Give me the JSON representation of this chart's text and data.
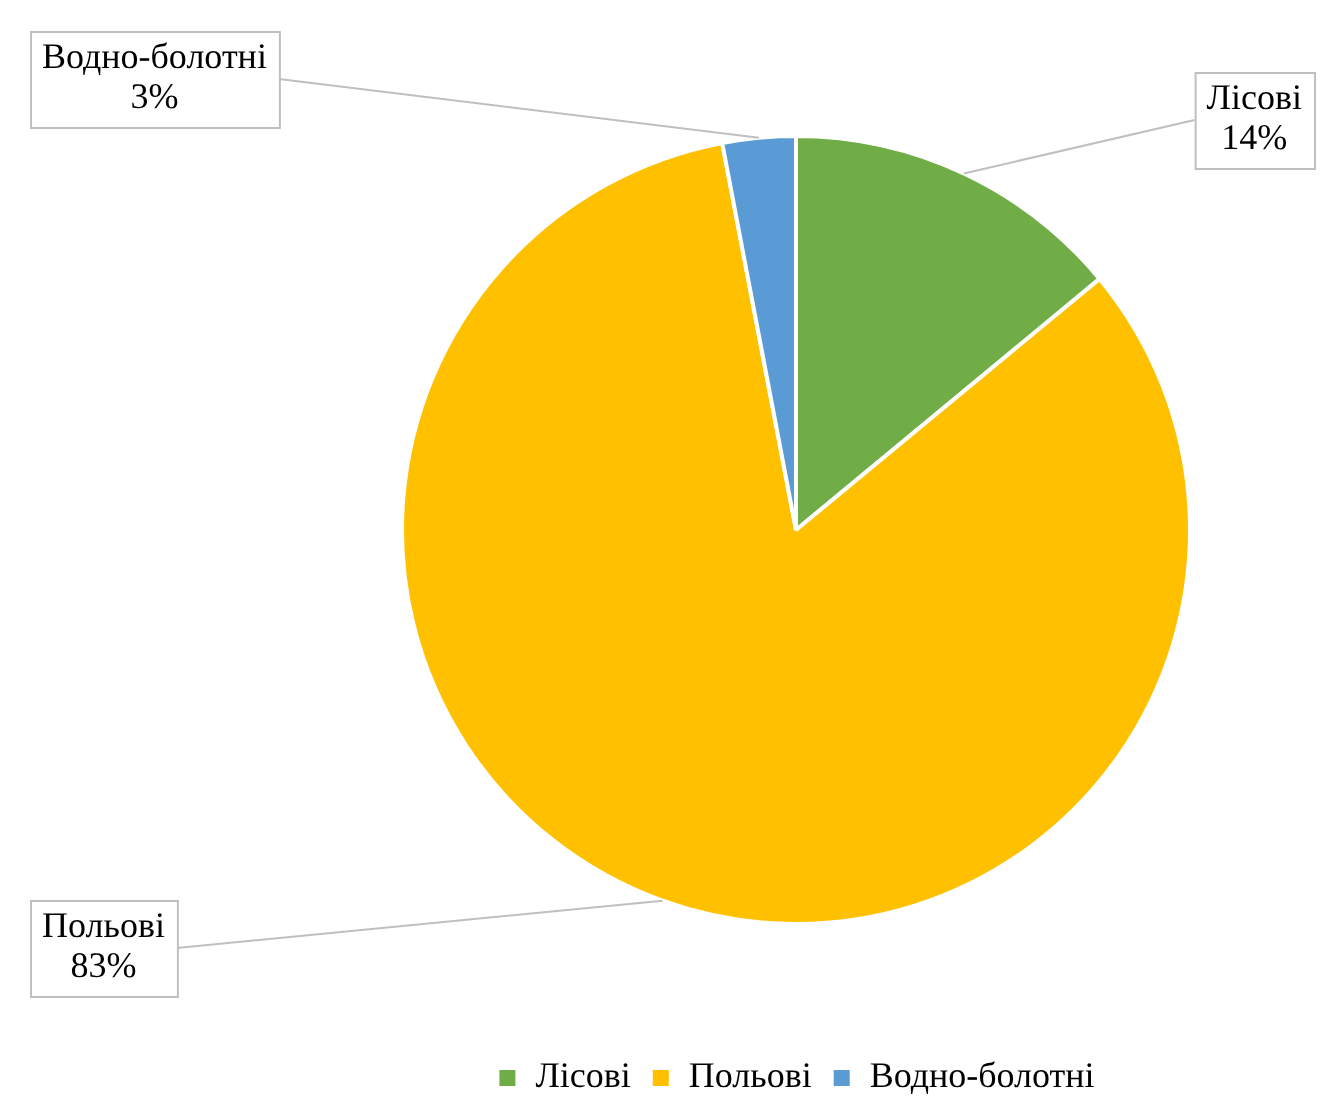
{
  "chart_data": {
    "type": "pie",
    "categories": [
      "Лісові",
      "Польові",
      "Водно-болотні"
    ],
    "values": [
      14,
      83,
      3
    ],
    "value_labels": [
      "14%",
      "83%",
      "3%"
    ],
    "colors": [
      "#70ad47",
      "#ffc000",
      "#5b9bd5"
    ],
    "legend": "bottom"
  }
}
